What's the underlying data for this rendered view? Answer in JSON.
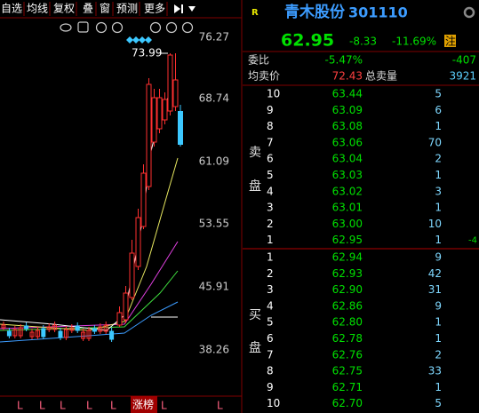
{
  "toolbar": [
    "自选",
    "均线",
    "复权",
    "叠",
    "窗",
    "预测",
    "更多"
  ],
  "chart": {
    "price_labels": [
      "76.27",
      "68.74",
      "61.09",
      "53.55",
      "45.91",
      "38.26"
    ],
    "high_label": "73.99",
    "bottom_markers": [
      "L",
      "L",
      "L",
      "L",
      "L",
      "L",
      "L"
    ],
    "bottom_tag": "涨榜"
  },
  "quote": {
    "badge": "R",
    "name": "青木股份",
    "code": "301110",
    "price": "62.95",
    "change": "-8.33",
    "change_pct": "-11.69%",
    "tag": "注"
  },
  "summary": {
    "wb_label": "委比",
    "wb_pct": "-5.47%",
    "wb_diff": "-407",
    "avg_label": "均卖价",
    "avg": "72.43",
    "total_label": "总卖量",
    "total": "3921"
  },
  "asks": {
    "side": [
      "卖",
      "盘"
    ],
    "rows": [
      [
        "10",
        "63.44",
        "5"
      ],
      [
        "9",
        "63.09",
        "6"
      ],
      [
        "8",
        "63.08",
        "1"
      ],
      [
        "7",
        "63.06",
        "70"
      ],
      [
        "6",
        "63.04",
        "2"
      ],
      [
        "5",
        "63.03",
        "1"
      ],
      [
        "4",
        "63.02",
        "3"
      ],
      [
        "3",
        "63.01",
        "1"
      ],
      [
        "2",
        "63.00",
        "10"
      ],
      [
        "1",
        "62.95",
        "1",
        "-4"
      ]
    ]
  },
  "bids": {
    "side": [
      "买",
      "盘"
    ],
    "rows": [
      [
        "1",
        "62.94",
        "9"
      ],
      [
        "2",
        "62.93",
        "42"
      ],
      [
        "3",
        "62.90",
        "31"
      ],
      [
        "4",
        "62.86",
        "9"
      ],
      [
        "5",
        "62.80",
        "1"
      ],
      [
        "6",
        "62.78",
        "1"
      ],
      [
        "7",
        "62.76",
        "2"
      ],
      [
        "8",
        "62.75",
        "33"
      ],
      [
        "9",
        "62.71",
        "1"
      ],
      [
        "10",
        "62.70",
        "5"
      ]
    ]
  }
}
